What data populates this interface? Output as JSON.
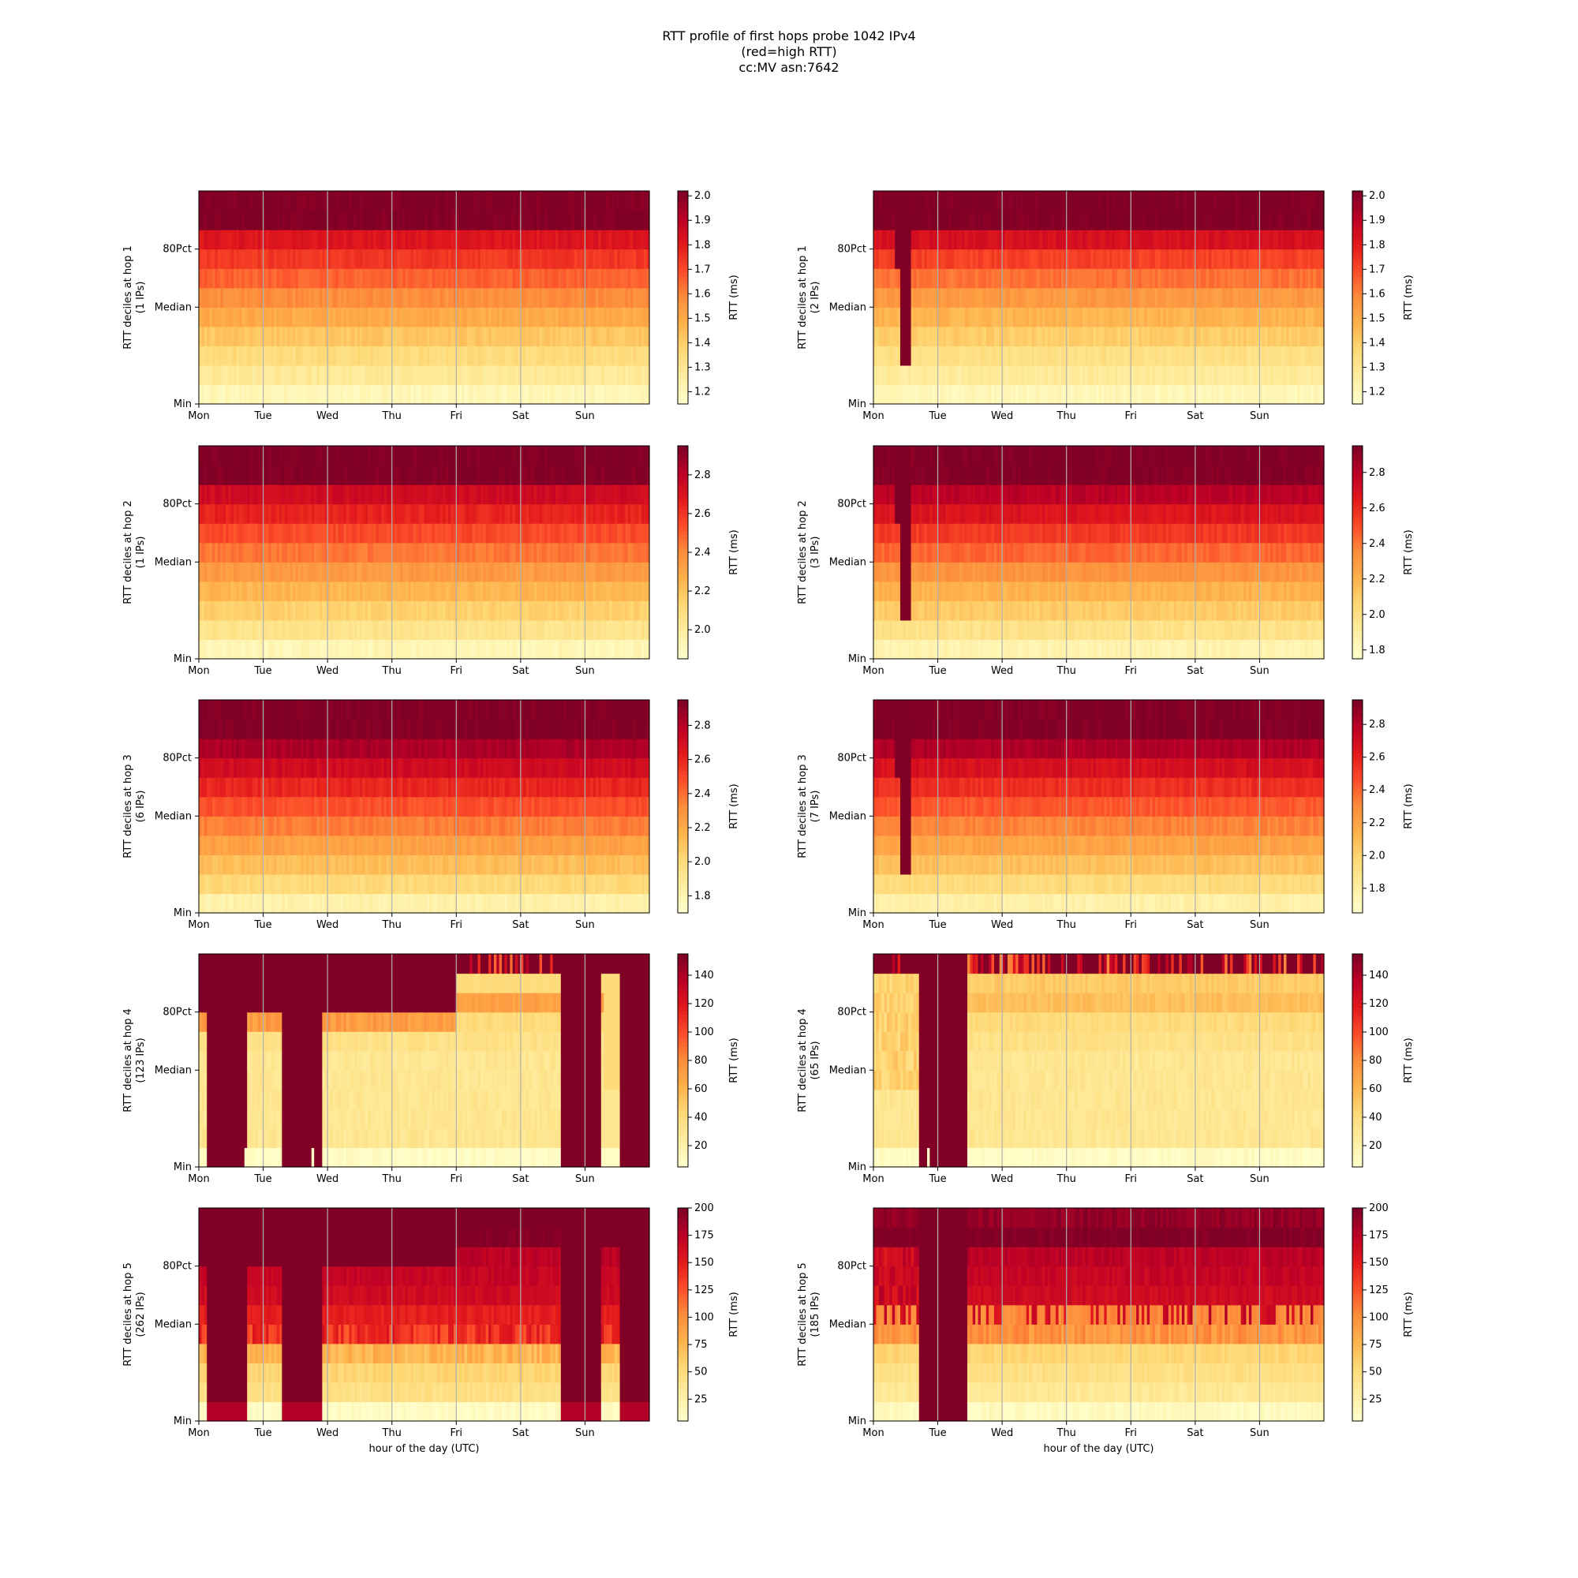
{
  "figure": {
    "title_lines": [
      "RTT profile of first hops probe 1042 IPv4",
      "(red=high RTT)",
      "cc:MV asn:7642"
    ],
    "colormap": [
      "#ffffcc",
      "#ffeda0",
      "#fed976",
      "#feb24c",
      "#fd8d3c",
      "#fc4e2a",
      "#e31a1c",
      "#bd0026",
      "#800026"
    ]
  },
  "chart_data": [
    {
      "type": "heatmap",
      "column": "left",
      "hop": 1,
      "ylabel": "RTT deciles at hop 1",
      "ylabel2": "(1 IPs)",
      "xticks": [
        "Mon",
        "Tue",
        "Wed",
        "Thu",
        "Fri",
        "Sat",
        "Sun"
      ],
      "xlabel": "",
      "yticks": [
        "Min",
        "Median",
        "80Pct"
      ],
      "colorbar": {
        "label": "RTT (ms)",
        "ticks": [
          "1.2",
          "1.3",
          "1.4",
          "1.5",
          "1.6",
          "1.7",
          "1.8",
          "1.9",
          "2.0"
        ],
        "range": [
          1.15,
          2.02
        ]
      },
      "pattern": "stable",
      "deciles": [
        1.2,
        1.28,
        1.35,
        1.42,
        1.5,
        1.58,
        1.66,
        1.74,
        1.82,
        2.02
      ]
    },
    {
      "type": "heatmap",
      "column": "right",
      "hop": 1,
      "ylabel": "RTT deciles at hop 1",
      "ylabel2": "(2 IPs)",
      "xticks": [
        "Mon",
        "Tue",
        "Wed",
        "Thu",
        "Fri",
        "Sat",
        "Sun"
      ],
      "xlabel": "",
      "yticks": [
        "Min",
        "Median",
        "80Pct"
      ],
      "colorbar": {
        "label": "RTT (ms)",
        "ticks": [
          "1.2",
          "1.3",
          "1.4",
          "1.5",
          "1.6",
          "1.7",
          "1.8",
          "1.9",
          "2.0"
        ],
        "range": [
          1.15,
          2.02
        ]
      },
      "pattern": "spike",
      "deciles": [
        1.2,
        1.27,
        1.33,
        1.4,
        1.47,
        1.55,
        1.63,
        1.72,
        1.84,
        2.02
      ]
    },
    {
      "type": "heatmap",
      "column": "left",
      "hop": 2,
      "ylabel": "RTT deciles at hop 2",
      "ylabel2": "(1 IPs)",
      "xticks": [
        "Mon",
        "Tue",
        "Wed",
        "Thu",
        "Fri",
        "Sat",
        "Sun"
      ],
      "xlabel": "",
      "yticks": [
        "Min",
        "Median",
        "80Pct"
      ],
      "colorbar": {
        "label": "RTT (ms)",
        "ticks": [
          "2.0",
          "2.2",
          "2.4",
          "2.6",
          "2.8"
        ],
        "range": [
          1.85,
          2.95
        ]
      },
      "pattern": "stable",
      "deciles": [
        1.92,
        2.05,
        2.15,
        2.25,
        2.35,
        2.45,
        2.55,
        2.65,
        2.75,
        2.95
      ]
    },
    {
      "type": "heatmap",
      "column": "right",
      "hop": 2,
      "ylabel": "RTT deciles at hop 2",
      "ylabel2": "(3 IPs)",
      "xticks": [
        "Mon",
        "Tue",
        "Wed",
        "Thu",
        "Fri",
        "Sat",
        "Sun"
      ],
      "xlabel": "",
      "yticks": [
        "Min",
        "Median",
        "80Pct"
      ],
      "colorbar": {
        "label": "RTT (ms)",
        "ticks": [
          "1.8",
          "2.0",
          "2.2",
          "2.4",
          "2.6",
          "2.8"
        ],
        "range": [
          1.75,
          2.95
        ]
      },
      "pattern": "spike",
      "deciles": [
        1.85,
        1.98,
        2.1,
        2.2,
        2.32,
        2.44,
        2.56,
        2.68,
        2.8,
        2.95
      ]
    },
    {
      "type": "heatmap",
      "column": "left",
      "hop": 3,
      "ylabel": "RTT deciles at hop 3",
      "ylabel2": "(6 IPs)",
      "xticks": [
        "Mon",
        "Tue",
        "Wed",
        "Thu",
        "Fri",
        "Sat",
        "Sun"
      ],
      "xlabel": "",
      "yticks": [
        "Min",
        "Median",
        "80Pct"
      ],
      "colorbar": {
        "label": "RTT (ms)",
        "ticks": [
          "1.8",
          "2.0",
          "2.2",
          "2.4",
          "2.6",
          "2.8"
        ],
        "range": [
          1.7,
          2.95
        ]
      },
      "pattern": "stable",
      "deciles": [
        1.82,
        2.0,
        2.12,
        2.24,
        2.36,
        2.48,
        2.6,
        2.72,
        2.84,
        2.95
      ]
    },
    {
      "type": "heatmap",
      "column": "right",
      "hop": 3,
      "ylabel": "RTT deciles at hop 3",
      "ylabel2": "(7 IPs)",
      "xticks": [
        "Mon",
        "Tue",
        "Wed",
        "Thu",
        "Fri",
        "Sat",
        "Sun"
      ],
      "xlabel": "",
      "yticks": [
        "Min",
        "Median",
        "80Pct"
      ],
      "colorbar": {
        "label": "RTT (ms)",
        "ticks": [
          "1.8",
          "2.0",
          "2.2",
          "2.4",
          "2.6",
          "2.8"
        ],
        "range": [
          1.65,
          2.95
        ]
      },
      "pattern": "spike",
      "deciles": [
        1.78,
        1.95,
        2.08,
        2.2,
        2.32,
        2.44,
        2.56,
        2.68,
        2.82,
        2.95
      ]
    },
    {
      "type": "heatmap",
      "column": "left",
      "hop": 4,
      "ylabel": "RTT deciles at hop 4",
      "ylabel2": "(123 IPs)",
      "xticks": [
        "Mon",
        "Tue",
        "Wed",
        "Thu",
        "Fri",
        "Sat",
        "Sun"
      ],
      "xlabel": "",
      "yticks": [
        "Min",
        "Median",
        "80Pct"
      ],
      "colorbar": {
        "label": "RTT (ms)",
        "ticks": [
          "20",
          "40",
          "60",
          "80",
          "100",
          "120",
          "140"
        ],
        "range": [
          5,
          155
        ]
      },
      "pattern": "hop4left",
      "deciles": [
        8,
        30,
        30,
        30,
        30,
        30,
        35,
        40,
        70,
        155
      ]
    },
    {
      "type": "heatmap",
      "column": "right",
      "hop": 4,
      "ylabel": "RTT deciles at hop 4",
      "ylabel2": "(65 IPs)",
      "xticks": [
        "Mon",
        "Tue",
        "Wed",
        "Thu",
        "Fri",
        "Sat",
        "Sun"
      ],
      "xlabel": "",
      "yticks": [
        "Min",
        "Median",
        "80Pct"
      ],
      "colorbar": {
        "label": "RTT (ms)",
        "ticks": [
          "20",
          "40",
          "60",
          "80",
          "100",
          "120",
          "140"
        ],
        "range": [
          5,
          155
        ]
      },
      "pattern": "hop4right",
      "deciles": [
        8,
        30,
        30,
        30,
        30,
        30,
        35,
        40,
        55,
        155
      ]
    },
    {
      "type": "heatmap",
      "column": "left",
      "hop": 5,
      "ylabel": "RTT deciles at hop 5",
      "ylabel2": "(262 IPs)",
      "xticks": [
        "Mon",
        "Tue",
        "Wed",
        "Thu",
        "Fri",
        "Sat",
        "Sun"
      ],
      "xlabel": "hour of the day (UTC)",
      "yticks": [
        "Min",
        "Median",
        "80Pct"
      ],
      "colorbar": {
        "label": "RTT (ms)",
        "ticks": [
          "25",
          "50",
          "75",
          "100",
          "125",
          "150",
          "175",
          "200"
        ],
        "range": [
          5,
          200
        ]
      },
      "pattern": "hop5left",
      "deciles": [
        10,
        45,
        55,
        65,
        75,
        150,
        165,
        170,
        175,
        200
      ]
    },
    {
      "type": "heatmap",
      "column": "right",
      "hop": 5,
      "ylabel": "RTT deciles at hop 5",
      "ylabel2": "(185 IPs)",
      "xticks": [
        "Mon",
        "Tue",
        "Wed",
        "Thu",
        "Fri",
        "Sat",
        "Sun"
      ],
      "xlabel": "hour of the day (UTC)",
      "yticks": [
        "Min",
        "Median",
        "80Pct"
      ],
      "colorbar": {
        "label": "RTT (ms)",
        "ticks": [
          "25",
          "50",
          "75",
          "100",
          "125",
          "150",
          "175",
          "200"
        ],
        "range": [
          5,
          200
        ]
      },
      "pattern": "hop5right",
      "deciles": [
        12,
        35,
        45,
        55,
        95,
        100,
        165,
        170,
        175,
        200
      ]
    }
  ]
}
